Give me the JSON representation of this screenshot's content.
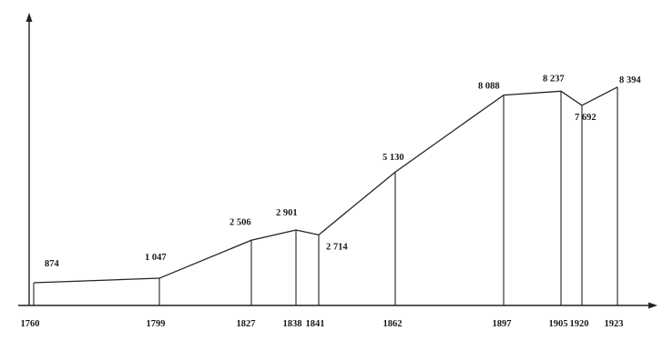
{
  "chart_data": {
    "type": "line",
    "title": "",
    "xlabel": "",
    "ylabel": "",
    "x": [
      "1760",
      "1799",
      "1827",
      "1838",
      "1841",
      "1862",
      "1897",
      "1905",
      "1920",
      "1923"
    ],
    "values": [
      874,
      1047,
      2506,
      2901,
      2714,
      5130,
      8088,
      8237,
      7692,
      8394
    ],
    "value_labels": [
      "874",
      "1 047",
      "2 506",
      "2 901",
      "2 714",
      "5 130",
      "8 088",
      "8 237",
      "7 692",
      "8 394"
    ],
    "ylim": [
      0,
      12000
    ],
    "grid": false,
    "legend": "none",
    "line_color": "#222222"
  }
}
